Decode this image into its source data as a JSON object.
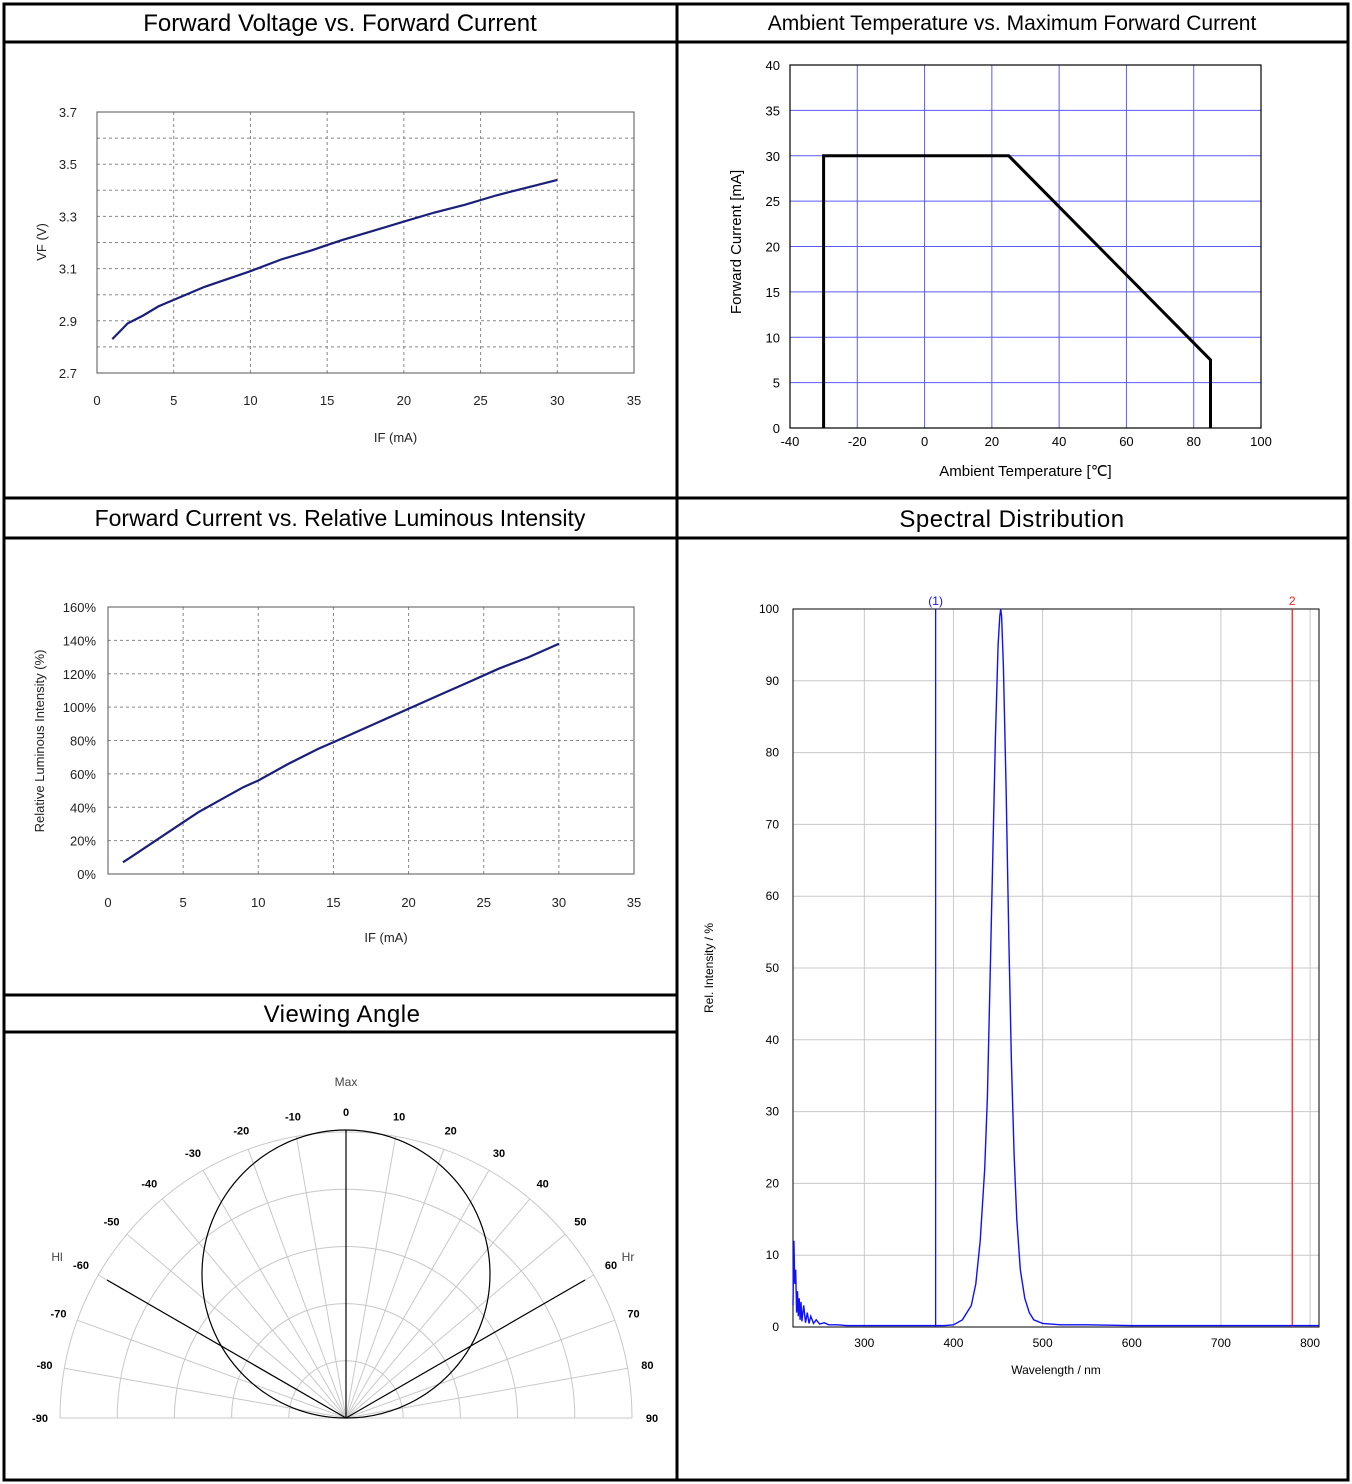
{
  "panels": {
    "vf_if": {
      "header": "Forward Voltage vs. Forward Current"
    },
    "ta_if": {
      "header": "Ambient Temperature vs. Maximum Forward Current"
    },
    "if_lum": {
      "header": "Forward Current vs. Relative Luminous Intensity"
    },
    "spectrum": {
      "header": "Spectral Distribution"
    },
    "viewing": {
      "header": "Viewing Angle"
    }
  },
  "colors": {
    "navy_curve": "#1a1f7a",
    "blue_grid": "#5a5aff",
    "spectrum_blue": "#1010ff",
    "marker_red": "#ff2020",
    "border": "#000000"
  },
  "chart_data": [
    {
      "id": "vf_if",
      "type": "line",
      "xlabel": "IF (mA)",
      "ylabel": "VF (V)",
      "xlim": [
        0,
        35
      ],
      "ylim": [
        2.7,
        3.7
      ],
      "xticks": [
        "0",
        "5",
        "10",
        "15",
        "20",
        "25",
        "30",
        "35"
      ],
      "yticks": [
        "2.7",
        "2.9",
        "3.1",
        "3.3",
        "3.5",
        "3.7"
      ],
      "grid": "dashed",
      "series": [
        {
          "x": [
            1,
            2,
            3,
            4,
            5,
            6,
            7,
            8,
            9,
            10,
            12,
            14,
            15,
            16,
            18,
            20,
            22,
            24,
            26,
            28,
            30
          ],
          "values": [
            2.83,
            2.89,
            2.92,
            2.955,
            2.98,
            3.005,
            3.03,
            3.05,
            3.07,
            3.09,
            3.135,
            3.17,
            3.19,
            3.21,
            3.245,
            3.28,
            3.315,
            3.345,
            3.38,
            3.41,
            3.44
          ]
        }
      ]
    },
    {
      "id": "ta_if",
      "type": "line",
      "xlabel": "Ambient Temperature [℃]",
      "ylabel": "Forward Current [mA]",
      "xlim": [
        -40,
        100
      ],
      "ylim": [
        0,
        40
      ],
      "xticks": [
        "-40",
        "-20",
        "0",
        "20",
        "40",
        "60",
        "80",
        "100"
      ],
      "yticks": [
        "0",
        "5",
        "10",
        "15",
        "20",
        "25",
        "30",
        "35",
        "40"
      ],
      "grid": "solid",
      "series": [
        {
          "x": [
            -30,
            -30,
            25,
            85,
            85
          ],
          "values": [
            0,
            30,
            30,
            7.5,
            0
          ]
        }
      ]
    },
    {
      "id": "if_lum",
      "type": "line",
      "xlabel": "IF (mA)",
      "ylabel": "Relative Luminous Intensity (%)",
      "xlim": [
        0,
        35
      ],
      "ylim": [
        0,
        160
      ],
      "xticks": [
        "0",
        "5",
        "10",
        "15",
        "20",
        "25",
        "30",
        "35"
      ],
      "yticks": [
        "0%",
        "20%",
        "40%",
        "60%",
        "80%",
        "100%",
        "120%",
        "140%",
        "160%"
      ],
      "grid": "dashed",
      "series": [
        {
          "x": [
            1,
            2,
            3,
            4,
            5,
            6,
            7,
            8,
            9,
            10,
            12,
            14,
            15,
            16,
            18,
            20,
            22,
            24,
            26,
            28,
            30
          ],
          "values": [
            7,
            13,
            19,
            25,
            31,
            37,
            42,
            47,
            52,
            56,
            66,
            75,
            79,
            83,
            91,
            99,
            107,
            115,
            123,
            130,
            138
          ]
        }
      ]
    },
    {
      "id": "spectrum",
      "type": "line",
      "xlabel": "Wavelength / nm",
      "ylabel": "Rel. Intensity / %",
      "xlim": [
        220,
        810
      ],
      "ylim": [
        0,
        100
      ],
      "xticks": [
        "300",
        "400",
        "500",
        "600",
        "700",
        "800"
      ],
      "yticks": [
        "0",
        "10",
        "20",
        "30",
        "40",
        "50",
        "60",
        "70",
        "80",
        "90",
        "100"
      ],
      "grid": "solid",
      "peak_nm": 453,
      "markers": [
        {
          "label": "(1)",
          "x": 380
        },
        {
          "label": "2",
          "x": 780
        }
      ],
      "series": [
        {
          "x": [
            220,
            221,
            222,
            223,
            224,
            225,
            226,
            227,
            228,
            229,
            230,
            232,
            234,
            236,
            238,
            240,
            243,
            246,
            250,
            255,
            260,
            270,
            280,
            300,
            350,
            390,
            400,
            410,
            420,
            425,
            430,
            435,
            438,
            441,
            444,
            447,
            450,
            452,
            453,
            454,
            456,
            459,
            462,
            465,
            468,
            471,
            475,
            480,
            485,
            490,
            500,
            520,
            550,
            600,
            650,
            700,
            750,
            800,
            810
          ],
          "values": [
            3,
            12,
            6,
            8,
            2,
            5,
            1.5,
            4,
            1,
            3.5,
            0.8,
            3,
            0.6,
            2,
            0.5,
            1.5,
            0.5,
            1,
            0.4,
            0.6,
            0.3,
            0.3,
            0.2,
            0.2,
            0.2,
            0.2,
            0.3,
            1,
            3,
            6,
            12,
            22,
            32,
            48,
            65,
            82,
            95,
            99,
            100,
            99,
            92,
            75,
            55,
            37,
            24,
            15,
            8,
            4,
            2,
            1,
            0.5,
            0.3,
            0.3,
            0.2,
            0.2,
            0.2,
            0.2,
            0.2,
            0.2
          ]
        }
      ]
    },
    {
      "id": "viewing",
      "type": "polar",
      "top_label": "Max",
      "left_label": "Hl",
      "right_label": "Hr",
      "angle_labels": [
        "-90",
        "-80",
        "-70",
        "-60",
        "-50",
        "-40",
        "-30",
        "-20",
        "-10",
        "0",
        "10",
        "20",
        "30",
        "40",
        "50",
        "60",
        "70",
        "80",
        "90"
      ],
      "half_angle_lines": [
        -60,
        60
      ],
      "pattern": "cosine"
    }
  ]
}
